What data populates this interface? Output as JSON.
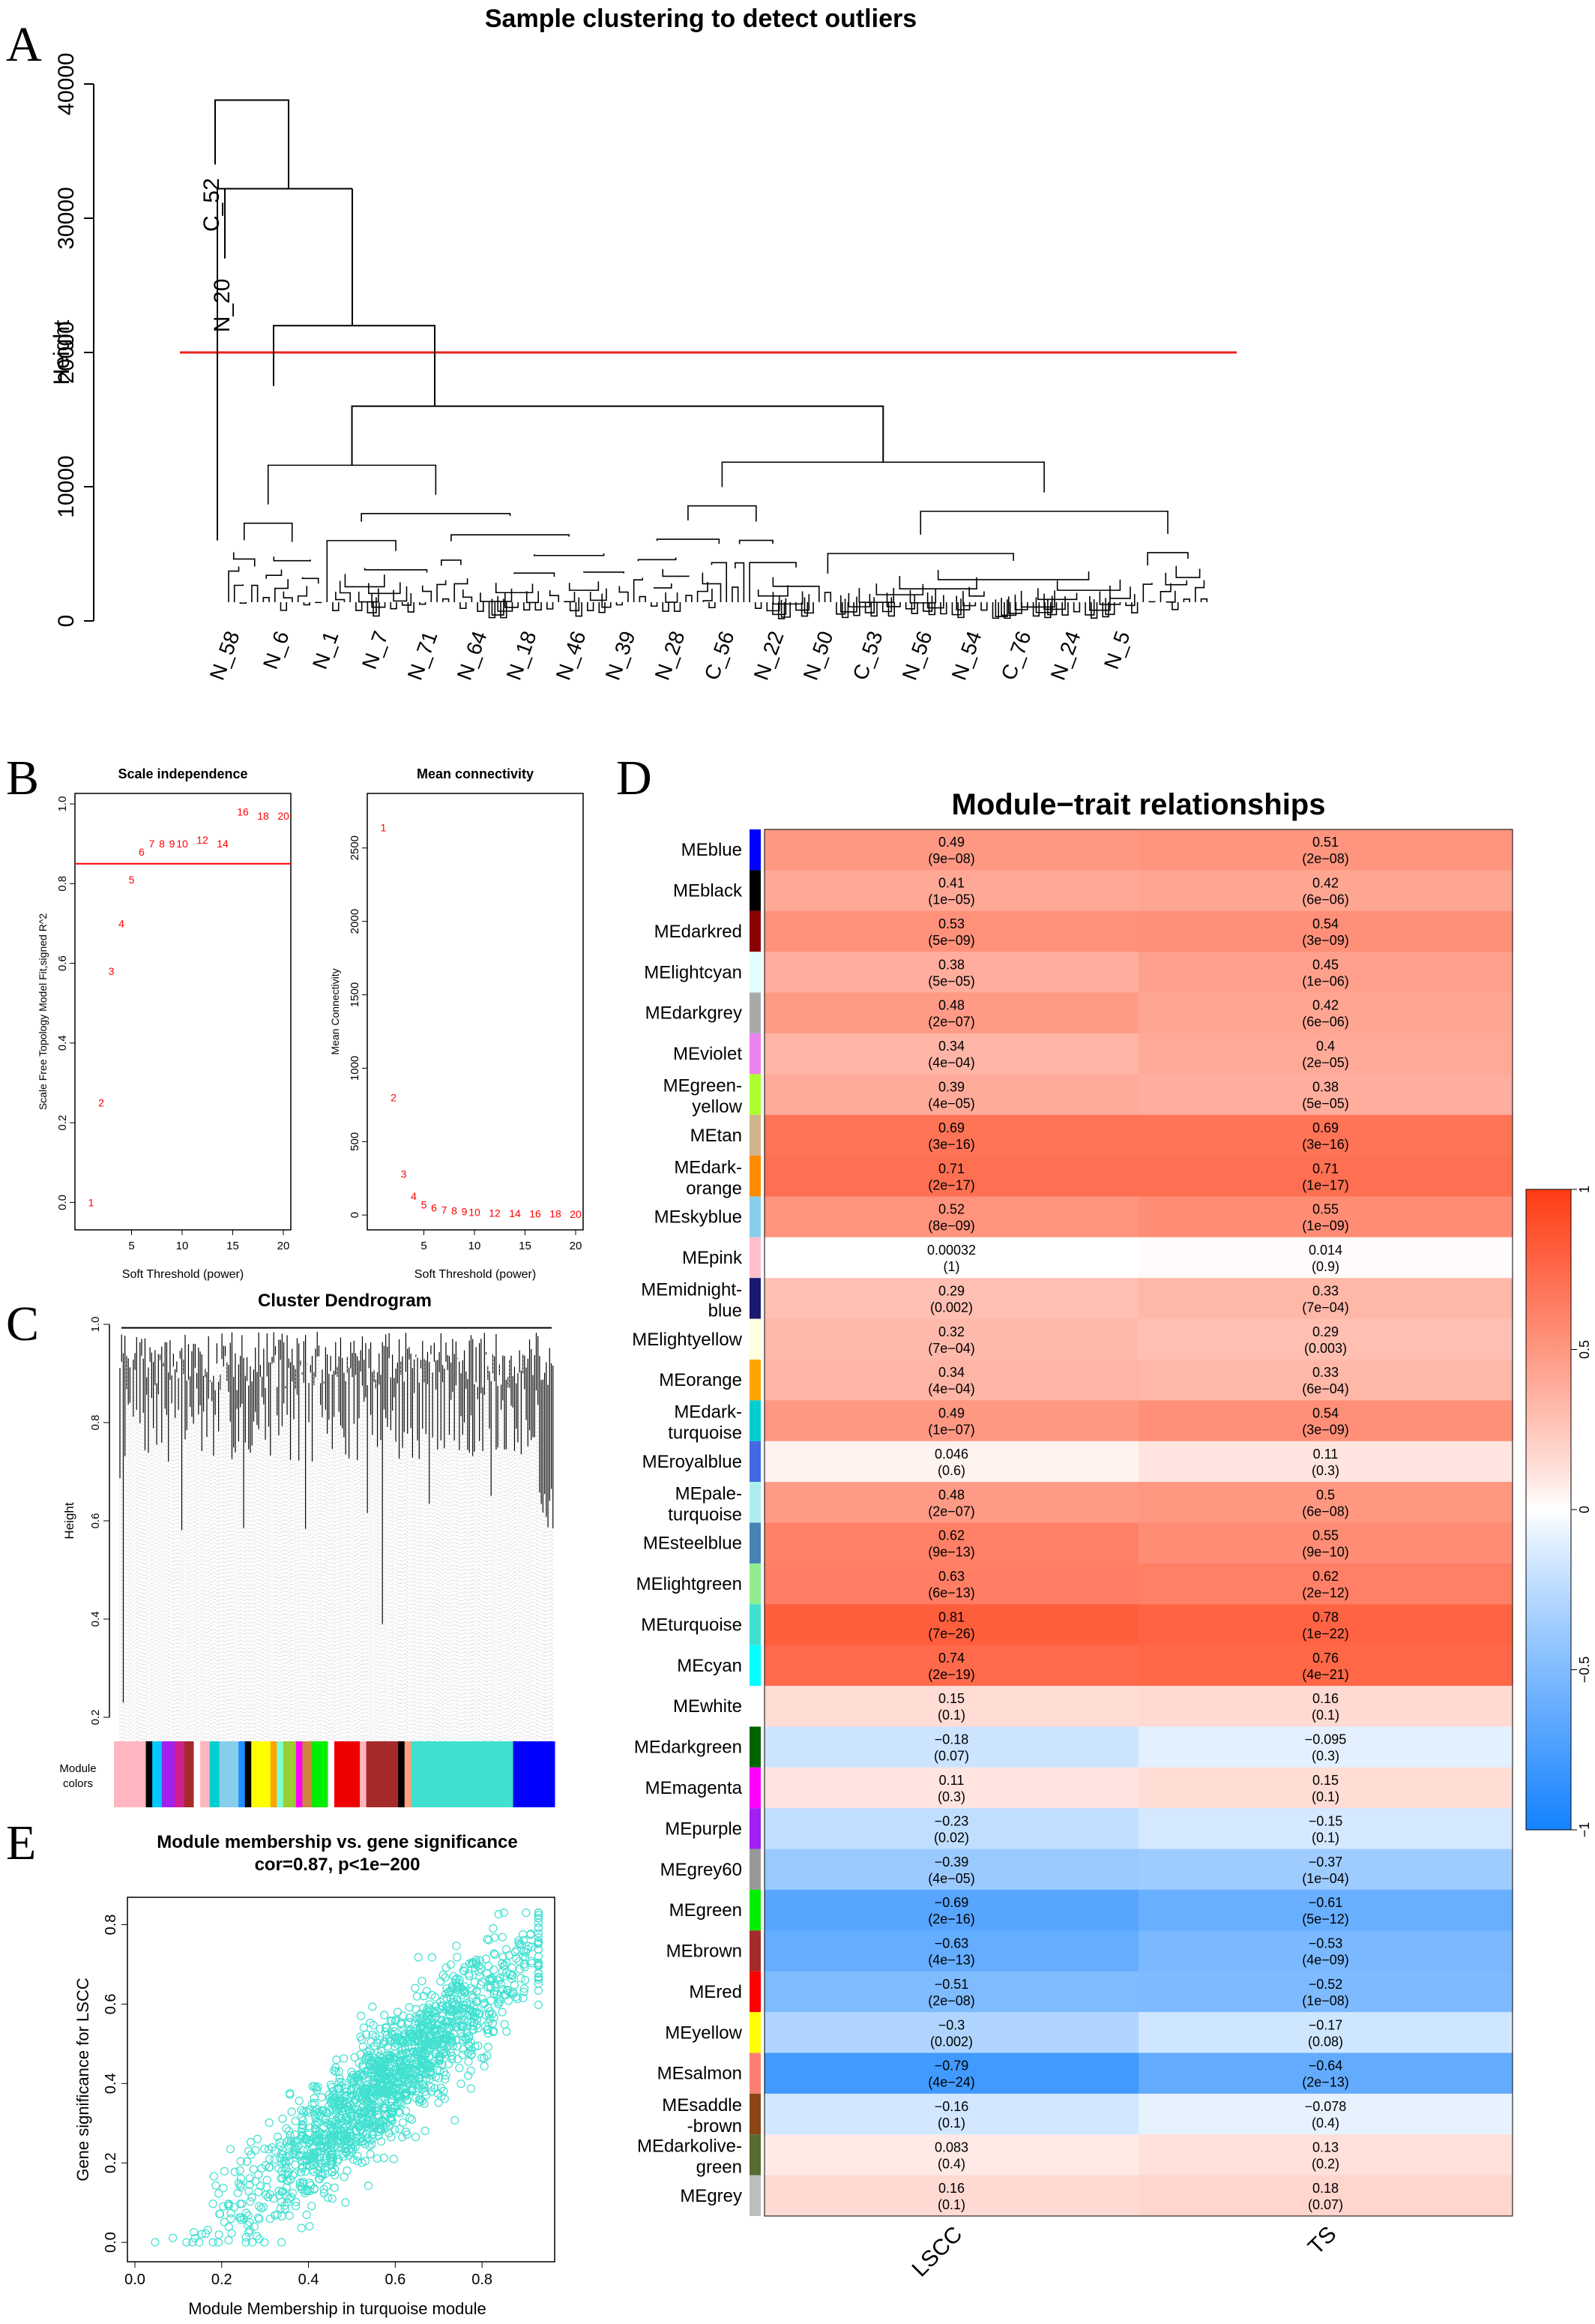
{
  "panel_letters": {
    "a": "A",
    "b": "B",
    "c": "C",
    "d": "D",
    "e": "E"
  },
  "chart_data": [
    {
      "panel": "A",
      "type": "dendrogram",
      "title": "Sample clustering to detect outliers",
      "ylabel": "Height",
      "ylim": [
        0,
        40000
      ],
      "yticks": [
        0,
        10000,
        20000,
        30000,
        40000
      ],
      "cut_height": 20000,
      "cut_line_color": "#e8221c",
      "outlier_labels": [
        "C_52",
        "N_20"
      ],
      "leaf_labels": [
        "N_58",
        "N_6",
        "N_1",
        "N_7",
        "N_71",
        "N_64",
        "N_18",
        "N_46",
        "N_39",
        "N_28",
        "C_56",
        "N_22",
        "N_50",
        "C_53",
        "N_56",
        "N_54",
        "C_76",
        "N_24",
        "N_5"
      ]
    },
    {
      "panel": "B1",
      "type": "scatter",
      "title": "Scale independence",
      "xlabel": "Soft Threshold (power)",
      "ylabel": "Scale Free Topology Model Fit,signed R^2",
      "xlim": [
        0,
        20
      ],
      "ylim": [
        -0.05,
        1.0
      ],
      "xticks": [
        5,
        10,
        15,
        20
      ],
      "yticks": [
        0.0,
        0.2,
        0.4,
        0.6,
        0.8,
        1.0
      ],
      "hline": 0.85,
      "point_color": "#ff0000",
      "points": [
        [
          1,
          0.0
        ],
        [
          2,
          0.25
        ],
        [
          3,
          0.58
        ],
        [
          4,
          0.7
        ],
        [
          5,
          0.81
        ],
        [
          6,
          0.88
        ],
        [
          7,
          0.9
        ],
        [
          8,
          0.9
        ],
        [
          9,
          0.9
        ],
        [
          10,
          0.9
        ],
        [
          12,
          0.91
        ],
        [
          14,
          0.9
        ],
        [
          16,
          0.98
        ],
        [
          18,
          0.97
        ],
        [
          20,
          0.97
        ]
      ]
    },
    {
      "panel": "B2",
      "type": "scatter",
      "title": "Mean connectivity",
      "xlabel": "Soft Threshold (power)",
      "ylabel": "Mean Connectivity",
      "xlim": [
        0,
        20
      ],
      "ylim": [
        -50,
        2800
      ],
      "xticks": [
        5,
        10,
        15,
        20
      ],
      "yticks": [
        0,
        500,
        1000,
        1500,
        2000,
        2500
      ],
      "point_color": "#ff0000",
      "points": [
        [
          1,
          2640
        ],
        [
          2,
          800
        ],
        [
          3,
          280
        ],
        [
          4,
          130
        ],
        [
          5,
          70
        ],
        [
          6,
          50
        ],
        [
          7,
          35
        ],
        [
          8,
          30
        ],
        [
          9,
          25
        ],
        [
          10,
          20
        ],
        [
          12,
          15
        ],
        [
          14,
          12
        ],
        [
          16,
          10
        ],
        [
          18,
          8
        ],
        [
          20,
          6
        ]
      ]
    },
    {
      "panel": "C",
      "type": "dendrogram",
      "title": "Cluster Dendrogram",
      "ylabel": "Height",
      "ylim": [
        0.2,
        1.0
      ],
      "yticks": [
        0.2,
        0.4,
        0.6,
        0.8,
        1.0
      ],
      "color_bar_label": "Module colors",
      "color_bar": [
        {
          "color": "#ffb6c1",
          "width": 10
        },
        {
          "color": "#000000",
          "width": 2
        },
        {
          "color": "#00c8ff",
          "width": 3
        },
        {
          "color": "#a020f0",
          "width": 4
        },
        {
          "color": "#d02090",
          "width": 3
        },
        {
          "color": "#a52a2a",
          "width": 3
        },
        {
          "color": "#ffffff",
          "width": 2
        },
        {
          "color": "#ffb6c1",
          "width": 3
        },
        {
          "color": "#00ced1",
          "width": 3
        },
        {
          "color": "#87ceeb",
          "width": 6
        },
        {
          "color": "#1e90ff",
          "width": 2
        },
        {
          "color": "#000000",
          "width": 2
        },
        {
          "color": "#ffff00",
          "width": 6
        },
        {
          "color": "#ffa500",
          "width": 2
        },
        {
          "color": "#7fffd4",
          "width": 2
        },
        {
          "color": "#9acd32",
          "width": 4
        },
        {
          "color": "#ff00ff",
          "width": 2
        },
        {
          "color": "#cd853f",
          "width": 3
        },
        {
          "color": "#00ee00",
          "width": 5
        },
        {
          "color": "#ffffff",
          "width": 2
        },
        {
          "color": "#ee0000",
          "width": 8
        },
        {
          "color": "#ffb6c1",
          "width": 2
        },
        {
          "color": "#a52a2a",
          "width": 10
        },
        {
          "color": "#000000",
          "width": 2
        },
        {
          "color": "#ffa07a",
          "width": 2
        },
        {
          "color": "#40e0d0",
          "width": 32
        },
        {
          "color": "#0000ff",
          "width": 13
        }
      ]
    },
    {
      "panel": "D",
      "type": "heatmap",
      "title": "Module−trait relationships",
      "columns": [
        "LSCC",
        "TS"
      ],
      "colorbar_ticks": [
        "1",
        "0.5",
        "0",
        "−0.5",
        "−1"
      ],
      "rows": [
        {
          "name": "MEblue",
          "swatch": "#0000ff",
          "cells": [
            {
              "r": 0.49,
              "cor": "0.49",
              "p": "(9e−08)"
            },
            {
              "r": 0.51,
              "cor": "0.51",
              "p": "(2e−08)"
            }
          ]
        },
        {
          "name": "MEblack",
          "swatch": "#000000",
          "cells": [
            {
              "r": 0.41,
              "cor": "0.41",
              "p": "(1e−05)"
            },
            {
              "r": 0.42,
              "cor": "0.42",
              "p": "(6e−06)"
            }
          ]
        },
        {
          "name": "MEdarkred",
          "swatch": "#8b0000",
          "cells": [
            {
              "r": 0.53,
              "cor": "0.53",
              "p": "(5e−09)"
            },
            {
              "r": 0.54,
              "cor": "0.54",
              "p": "(3e−09)"
            }
          ]
        },
        {
          "name": "MElightcyan",
          "swatch": "#e0ffff",
          "cells": [
            {
              "r": 0.38,
              "cor": "0.38",
              "p": "(5e−05)"
            },
            {
              "r": 0.45,
              "cor": "0.45",
              "p": "(1e−06)"
            }
          ]
        },
        {
          "name": "MEdarkgrey",
          "swatch": "#a9a9a9",
          "cells": [
            {
              "r": 0.48,
              "cor": "0.48",
              "p": "(2e−07)"
            },
            {
              "r": 0.42,
              "cor": "0.42",
              "p": "(6e−06)"
            }
          ]
        },
        {
          "name": "MEviolet",
          "swatch": "#ee82ee",
          "cells": [
            {
              "r": 0.34,
              "cor": "0.34",
              "p": "(4e−04)"
            },
            {
              "r": 0.4,
              "cor": "0.4",
              "p": "(2e−05)"
            }
          ]
        },
        {
          "name": "MEgreen-\nyellow",
          "swatch": "#adff2f",
          "cells": [
            {
              "r": 0.39,
              "cor": "0.39",
              "p": "(4e−05)"
            },
            {
              "r": 0.38,
              "cor": "0.38",
              "p": "(5e−05)"
            }
          ]
        },
        {
          "name": "MEtan",
          "swatch": "#d2b48c",
          "cells": [
            {
              "r": 0.69,
              "cor": "0.69",
              "p": "(3e−16)"
            },
            {
              "r": 0.69,
              "cor": "0.69",
              "p": "(3e−16)"
            }
          ]
        },
        {
          "name": "MEdark-\norange",
          "swatch": "#ff8c00",
          "cells": [
            {
              "r": 0.71,
              "cor": "0.71",
              "p": "(2e−17)"
            },
            {
              "r": 0.71,
              "cor": "0.71",
              "p": "(1e−17)"
            }
          ]
        },
        {
          "name": "MEskyblue",
          "swatch": "#87ceeb",
          "cells": [
            {
              "r": 0.52,
              "cor": "0.52",
              "p": "(8e−09)"
            },
            {
              "r": 0.55,
              "cor": "0.55",
              "p": "(1e−09)"
            }
          ]
        },
        {
          "name": "MEpink",
          "swatch": "#ffc0cb",
          "cells": [
            {
              "r": 0.00032,
              "cor": "0.00032",
              "p": "(1)"
            },
            {
              "r": 0.014,
              "cor": "0.014",
              "p": "(0.9)"
            }
          ]
        },
        {
          "name": "MEmidnight-\nblue",
          "swatch": "#191970",
          "cells": [
            {
              "r": 0.29,
              "cor": "0.29",
              "p": "(0.002)"
            },
            {
              "r": 0.33,
              "cor": "0.33",
              "p": "(7e−04)"
            }
          ]
        },
        {
          "name": "MElightyellow",
          "swatch": "#ffffe0",
          "cells": [
            {
              "r": 0.32,
              "cor": "0.32",
              "p": "(7e−04)"
            },
            {
              "r": 0.29,
              "cor": "0.29",
              "p": "(0.003)"
            }
          ]
        },
        {
          "name": "MEorange",
          "swatch": "#ffa500",
          "cells": [
            {
              "r": 0.34,
              "cor": "0.34",
              "p": "(4e−04)"
            },
            {
              "r": 0.33,
              "cor": "0.33",
              "p": "(6e−04)"
            }
          ]
        },
        {
          "name": "MEdark-\nturquoise",
          "swatch": "#00ced1",
          "cells": [
            {
              "r": 0.49,
              "cor": "0.49",
              "p": "(1e−07)"
            },
            {
              "r": 0.54,
              "cor": "0.54",
              "p": "(3e−09)"
            }
          ]
        },
        {
          "name": "MEroyalblue",
          "swatch": "#4169e1",
          "cells": [
            {
              "r": 0.046,
              "cor": "0.046",
              "p": "(0.6)"
            },
            {
              "r": 0.11,
              "cor": "0.11",
              "p": "(0.3)"
            }
          ]
        },
        {
          "name": "MEpale-\nturquoise",
          "swatch": "#afeeee",
          "cells": [
            {
              "r": 0.48,
              "cor": "0.48",
              "p": "(2e−07)"
            },
            {
              "r": 0.5,
              "cor": "0.5",
              "p": "(6e−08)"
            }
          ]
        },
        {
          "name": "MEsteelblue",
          "swatch": "#4682b4",
          "cells": [
            {
              "r": 0.62,
              "cor": "0.62",
              "p": "(9e−13)"
            },
            {
              "r": 0.55,
              "cor": "0.55",
              "p": "(9e−10)"
            }
          ]
        },
        {
          "name": "MElightgreen",
          "swatch": "#90ee90",
          "cells": [
            {
              "r": 0.63,
              "cor": "0.63",
              "p": "(6e−13)"
            },
            {
              "r": 0.62,
              "cor": "0.62",
              "p": "(2e−12)"
            }
          ]
        },
        {
          "name": "MEturquoise",
          "swatch": "#40e0d0",
          "cells": [
            {
              "r": 0.81,
              "cor": "0.81",
              "p": "(7e−26)"
            },
            {
              "r": 0.78,
              "cor": "0.78",
              "p": "(1e−22)"
            }
          ]
        },
        {
          "name": "MEcyan",
          "swatch": "#00ffff",
          "cells": [
            {
              "r": 0.74,
              "cor": "0.74",
              "p": "(2e−19)"
            },
            {
              "r": 0.76,
              "cor": "0.76",
              "p": "(4e−21)"
            }
          ]
        },
        {
          "name": "MEwhite",
          "swatch": "#ffffff",
          "cells": [
            {
              "r": 0.15,
              "cor": "0.15",
              "p": "(0.1)"
            },
            {
              "r": 0.16,
              "cor": "0.16",
              "p": "(0.1)"
            }
          ]
        },
        {
          "name": "MEdarkgreen",
          "swatch": "#006400",
          "cells": [
            {
              "r": -0.18,
              "cor": "−0.18",
              "p": "(0.07)"
            },
            {
              "r": -0.095,
              "cor": "−0.095",
              "p": "(0.3)"
            }
          ]
        },
        {
          "name": "MEmagenta",
          "swatch": "#ff00ff",
          "cells": [
            {
              "r": 0.11,
              "cor": "0.11",
              "p": "(0.3)"
            },
            {
              "r": 0.15,
              "cor": "0.15",
              "p": "(0.1)"
            }
          ]
        },
        {
          "name": "MEpurple",
          "swatch": "#a020f0",
          "cells": [
            {
              "r": -0.23,
              "cor": "−0.23",
              "p": "(0.02)"
            },
            {
              "r": -0.15,
              "cor": "−0.15",
              "p": "(0.1)"
            }
          ]
        },
        {
          "name": "MEgrey60",
          "swatch": "#999999",
          "cells": [
            {
              "r": -0.39,
              "cor": "−0.39",
              "p": "(4e−05)"
            },
            {
              "r": -0.37,
              "cor": "−0.37",
              "p": "(1e−04)"
            }
          ]
        },
        {
          "name": "MEgreen",
          "swatch": "#00ee00",
          "cells": [
            {
              "r": -0.69,
              "cor": "−0.69",
              "p": "(2e−16)"
            },
            {
              "r": -0.61,
              "cor": "−0.61",
              "p": "(5e−12)"
            }
          ]
        },
        {
          "name": "MEbrown",
          "swatch": "#a52a2a",
          "cells": [
            {
              "r": -0.63,
              "cor": "−0.63",
              "p": "(4e−13)"
            },
            {
              "r": -0.53,
              "cor": "−0.53",
              "p": "(4e−09)"
            }
          ]
        },
        {
          "name": "MEred",
          "swatch": "#ff0000",
          "cells": [
            {
              "r": -0.51,
              "cor": "−0.51",
              "p": "(2e−08)"
            },
            {
              "r": -0.52,
              "cor": "−0.52",
              "p": "(1e−08)"
            }
          ]
        },
        {
          "name": "MEyellow",
          "swatch": "#ffff00",
          "cells": [
            {
              "r": -0.3,
              "cor": "−0.3",
              "p": "(0.002)"
            },
            {
              "r": -0.17,
              "cor": "−0.17",
              "p": "(0.08)"
            }
          ]
        },
        {
          "name": "MEsalmon",
          "swatch": "#fa8072",
          "cells": [
            {
              "r": -0.79,
              "cor": "−0.79",
              "p": "(4e−24)"
            },
            {
              "r": -0.64,
              "cor": "−0.64",
              "p": "(2e−13)"
            }
          ]
        },
        {
          "name": "MEsaddle\n-brown",
          "swatch": "#8b4513",
          "cells": [
            {
              "r": -0.16,
              "cor": "−0.16",
              "p": "(0.1)"
            },
            {
              "r": -0.078,
              "cor": "−0.078",
              "p": "(0.4)"
            }
          ]
        },
        {
          "name": "MEdarkolive-\ngreen",
          "swatch": "#556b2f",
          "cells": [
            {
              "r": 0.083,
              "cor": "0.083",
              "p": "(0.4)"
            },
            {
              "r": 0.13,
              "cor": "0.13",
              "p": "(0.2)"
            }
          ]
        },
        {
          "name": "MEgrey",
          "swatch": "#bebebe",
          "cells": [
            {
              "r": 0.16,
              "cor": "0.16",
              "p": "(0.1)"
            },
            {
              "r": 0.18,
              "cor": "0.18",
              "p": "(0.07)"
            }
          ]
        }
      ]
    },
    {
      "panel": "E",
      "type": "scatter",
      "title": "Module membership vs. gene significance",
      "subtitle": "cor=0.87, p<1e−200",
      "xlabel": "Module Membership in turquoise module",
      "ylabel": "Gene significance for LSCC",
      "xlim": [
        0.0,
        0.95
      ],
      "ylim": [
        -0.03,
        0.85
      ],
      "xticks": [
        0.0,
        0.2,
        0.4,
        0.6,
        0.8
      ],
      "yticks": [
        0.0,
        0.2,
        0.4,
        0.6,
        0.8
      ],
      "point_color": "#40e0d0",
      "correlation": 0.87
    }
  ]
}
